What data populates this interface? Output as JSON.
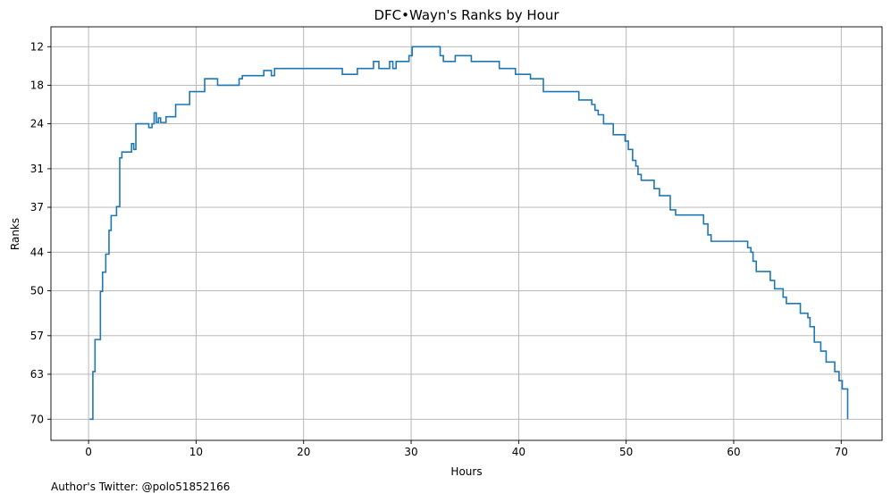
{
  "chart_data": {
    "type": "line",
    "title": "DFC•Wayn's Ranks by Hour",
    "xlabel": "Hours",
    "ylabel": "Ranks",
    "xlim": [
      -3.5,
      73.8
    ],
    "ylim": [
      73.3,
      8.9
    ],
    "y_inverted": true,
    "grid": true,
    "step": "post",
    "line_color": "#1f77b4",
    "x_ticks": [
      0,
      10,
      20,
      30,
      40,
      50,
      60,
      70
    ],
    "x_tick_labels": [
      "0",
      "10",
      "20",
      "30",
      "40",
      "50",
      "60",
      "70"
    ],
    "y_ticks": [
      12,
      18,
      24,
      31,
      37,
      44,
      50,
      57,
      63,
      70
    ],
    "y_tick_labels": [
      "12",
      "18",
      "24",
      "31",
      "37",
      "44",
      "50",
      "57",
      "63",
      "70"
    ],
    "series": [
      {
        "x": [
          0.1,
          0.4,
          0.6,
          1.1,
          1.3,
          1.6,
          1.9,
          2.1,
          2.6,
          2.9,
          3.1,
          4.0,
          4.2,
          4.4,
          5.6,
          5.9,
          6.1,
          6.3,
          6.5,
          6.7,
          7.2,
          8.1,
          9.4,
          10.8,
          12.0,
          14.0,
          14.3,
          16.3,
          17.0,
          17.3,
          22.8,
          23.6,
          25.0,
          26.5,
          27.0,
          28.0,
          28.3,
          28.6,
          29.8,
          30.1,
          32.7,
          33.0,
          34.1,
          35.6,
          38.2,
          39.7,
          41.1,
          42.3,
          45.3,
          45.6,
          46.8,
          47.1,
          47.4,
          47.9,
          48.8,
          49.9,
          50.2,
          50.6,
          50.9,
          51.1,
          51.4,
          52.6,
          53.1,
          54.1,
          54.6,
          57.2,
          57.6,
          57.9,
          60.8,
          61.3,
          61.6,
          61.8,
          62.1,
          63.4,
          63.8,
          64.6,
          64.9,
          66.2,
          66.9,
          67.1,
          67.5,
          68.1,
          68.6,
          69.4,
          69.8,
          70.1,
          70.6
        ],
        "y": [
          70,
          62.6,
          57.6,
          50.1,
          47.1,
          44.3,
          40.6,
          38.3,
          36.9,
          29.3,
          28.4,
          27.1,
          28.0,
          24.0,
          24.6,
          24.0,
          22.3,
          23.8,
          23.1,
          23.8,
          22.9,
          21.0,
          19.0,
          17.0,
          18.0,
          17.0,
          16.5,
          15.7,
          16.5,
          15.4,
          15.4,
          16.3,
          15.4,
          14.3,
          15.4,
          14.3,
          15.4,
          14.3,
          13.4,
          12.0,
          13.4,
          14.3,
          13.4,
          14.3,
          15.4,
          16.3,
          17.0,
          19.0,
          19.0,
          20.3,
          21.0,
          21.9,
          22.6,
          24.0,
          25.7,
          26.7,
          28.0,
          29.7,
          30.6,
          31.9,
          32.8,
          34.1,
          35.2,
          37.4,
          38.2,
          39.6,
          41.3,
          42.3,
          42.3,
          43.3,
          44.0,
          45.4,
          47.0,
          48.4,
          49.7,
          51.0,
          52.0,
          53.5,
          54.2,
          55.6,
          58.0,
          59.4,
          61.1,
          62.6,
          64.0,
          65.3,
          70.0
        ]
      }
    ]
  },
  "footer": {
    "text": "Author's Twitter: @polo51852166"
  }
}
